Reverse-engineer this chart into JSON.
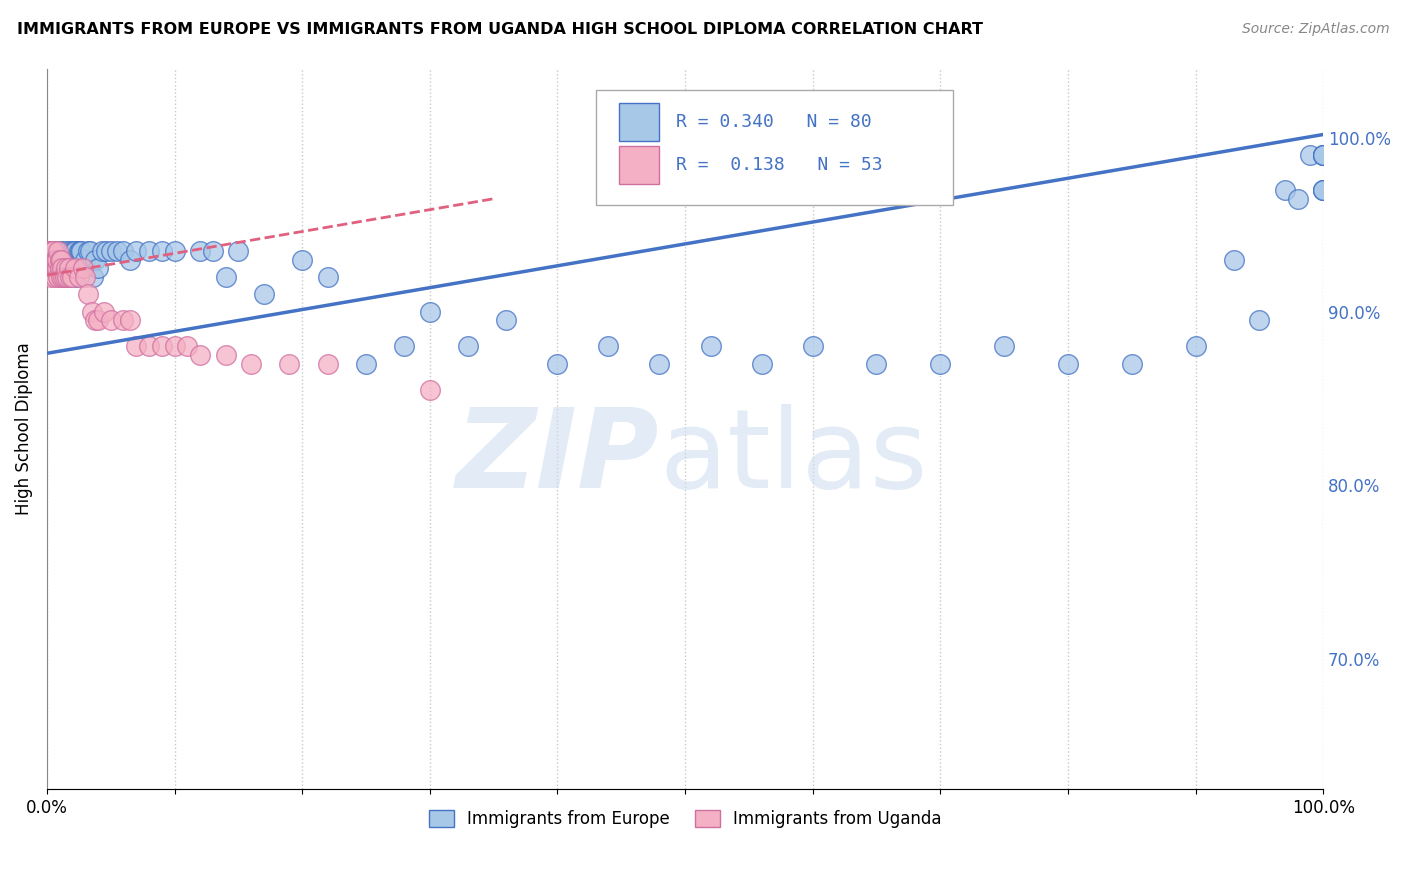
{
  "title": "IMMIGRANTS FROM EUROPE VS IMMIGRANTS FROM UGANDA HIGH SCHOOL DIPLOMA CORRELATION CHART",
  "source": "Source: ZipAtlas.com",
  "ylabel": "High School Diploma",
  "r_europe": 0.34,
  "n_europe": 80,
  "r_uganda": 0.138,
  "n_uganda": 53,
  "xmin": 0.0,
  "xmax": 1.0,
  "ymin": 0.625,
  "ymax": 1.04,
  "right_yticks": [
    0.7,
    0.8,
    0.9,
    1.0
  ],
  "right_ytick_labels": [
    "70.0%",
    "80.0%",
    "90.0%",
    "100.0%"
  ],
  "color_europe": "#a8c8e8",
  "color_uganda": "#f4b0c4",
  "trendline_europe": "#4472c4",
  "trendline_uganda": "#e06080",
  "europe_scatter_x": [
    0.003,
    0.005,
    0.006,
    0.007,
    0.008,
    0.009,
    0.01,
    0.011,
    0.012,
    0.013,
    0.014,
    0.015,
    0.015,
    0.016,
    0.016,
    0.017,
    0.017,
    0.018,
    0.019,
    0.02,
    0.021,
    0.022,
    0.023,
    0.024,
    0.025,
    0.026,
    0.027,
    0.028,
    0.03,
    0.032,
    0.034,
    0.036,
    0.038,
    0.04,
    0.043,
    0.046,
    0.05,
    0.055,
    0.06,
    0.065,
    0.07,
    0.08,
    0.09,
    0.1,
    0.12,
    0.13,
    0.14,
    0.15,
    0.17,
    0.2,
    0.22,
    0.25,
    0.28,
    0.3,
    0.33,
    0.36,
    0.4,
    0.44,
    0.48,
    0.52,
    0.56,
    0.6,
    0.65,
    0.7,
    0.75,
    0.8,
    0.85,
    0.9,
    0.93,
    0.95,
    0.97,
    0.98,
    0.99,
    1.0,
    1.0,
    1.0,
    1.0,
    1.0,
    1.0,
    1.0
  ],
  "europe_scatter_y": [
    0.93,
    0.935,
    0.93,
    0.93,
    0.93,
    0.935,
    0.935,
    0.935,
    0.92,
    0.925,
    0.925,
    0.93,
    0.935,
    0.92,
    0.93,
    0.925,
    0.935,
    0.925,
    0.93,
    0.935,
    0.935,
    0.935,
    0.92,
    0.93,
    0.935,
    0.935,
    0.935,
    0.925,
    0.93,
    0.935,
    0.935,
    0.92,
    0.93,
    0.925,
    0.935,
    0.935,
    0.935,
    0.935,
    0.935,
    0.93,
    0.935,
    0.935,
    0.935,
    0.935,
    0.935,
    0.935,
    0.92,
    0.935,
    0.91,
    0.93,
    0.92,
    0.87,
    0.88,
    0.9,
    0.88,
    0.895,
    0.87,
    0.88,
    0.87,
    0.88,
    0.87,
    0.88,
    0.87,
    0.87,
    0.88,
    0.87,
    0.87,
    0.88,
    0.93,
    0.895,
    0.97,
    0.965,
    0.99,
    0.97,
    0.97,
    0.97,
    0.99,
    0.99,
    0.99,
    0.99
  ],
  "uganda_scatter_x": [
    0.001,
    0.002,
    0.002,
    0.003,
    0.003,
    0.004,
    0.004,
    0.005,
    0.005,
    0.005,
    0.006,
    0.006,
    0.007,
    0.007,
    0.008,
    0.008,
    0.009,
    0.009,
    0.01,
    0.01,
    0.011,
    0.011,
    0.012,
    0.013,
    0.014,
    0.015,
    0.016,
    0.017,
    0.018,
    0.02,
    0.022,
    0.025,
    0.028,
    0.03,
    0.032,
    0.035,
    0.038,
    0.04,
    0.045,
    0.05,
    0.06,
    0.065,
    0.07,
    0.08,
    0.09,
    0.1,
    0.11,
    0.12,
    0.14,
    0.16,
    0.19,
    0.22,
    0.3
  ],
  "uganda_scatter_y": [
    0.935,
    0.93,
    0.935,
    0.93,
    0.92,
    0.935,
    0.935,
    0.93,
    0.93,
    0.935,
    0.92,
    0.93,
    0.925,
    0.93,
    0.925,
    0.93,
    0.92,
    0.935,
    0.93,
    0.925,
    0.92,
    0.93,
    0.925,
    0.92,
    0.92,
    0.925,
    0.92,
    0.925,
    0.92,
    0.92,
    0.925,
    0.92,
    0.925,
    0.92,
    0.91,
    0.9,
    0.895,
    0.895,
    0.9,
    0.895,
    0.895,
    0.895,
    0.88,
    0.88,
    0.88,
    0.88,
    0.88,
    0.875,
    0.875,
    0.87,
    0.87,
    0.87,
    0.855
  ],
  "watermark_zip": "ZIP",
  "watermark_atlas": "atlas"
}
